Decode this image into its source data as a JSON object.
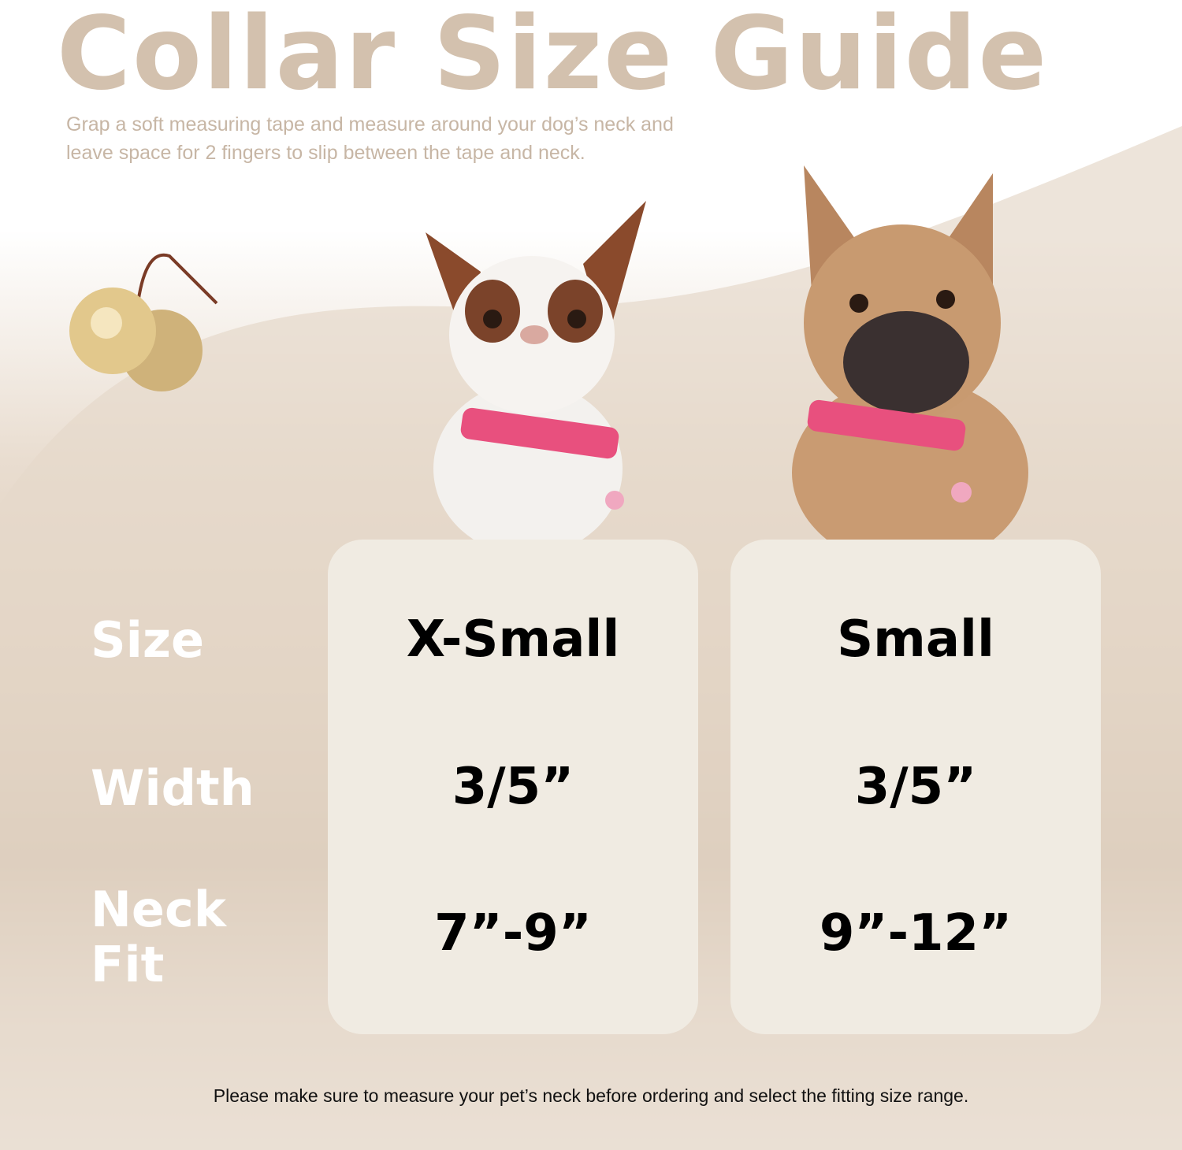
{
  "title": "Collar Size Guide",
  "instructions": "Grap a soft measuring tape and measure around your dog’s neck and leave space for 2 fingers to slip between the tape and neck.",
  "row_labels": {
    "size": "Size",
    "width": "Width",
    "neck_fit": "Neck Fit"
  },
  "columns": [
    {
      "size": "X-Small",
      "width": "3/5”",
      "neck_fit": "7”-9”"
    },
    {
      "size": "Small",
      "width": "3/5”",
      "neck_fit": "9”-12”"
    }
  ],
  "footer": "Please make sure to measure your pet’s neck before ordering and select the fitting  size range.",
  "colors": {
    "title": "#d3c1ae",
    "card": "#f0ebe2",
    "collar": "#e8507e"
  }
}
